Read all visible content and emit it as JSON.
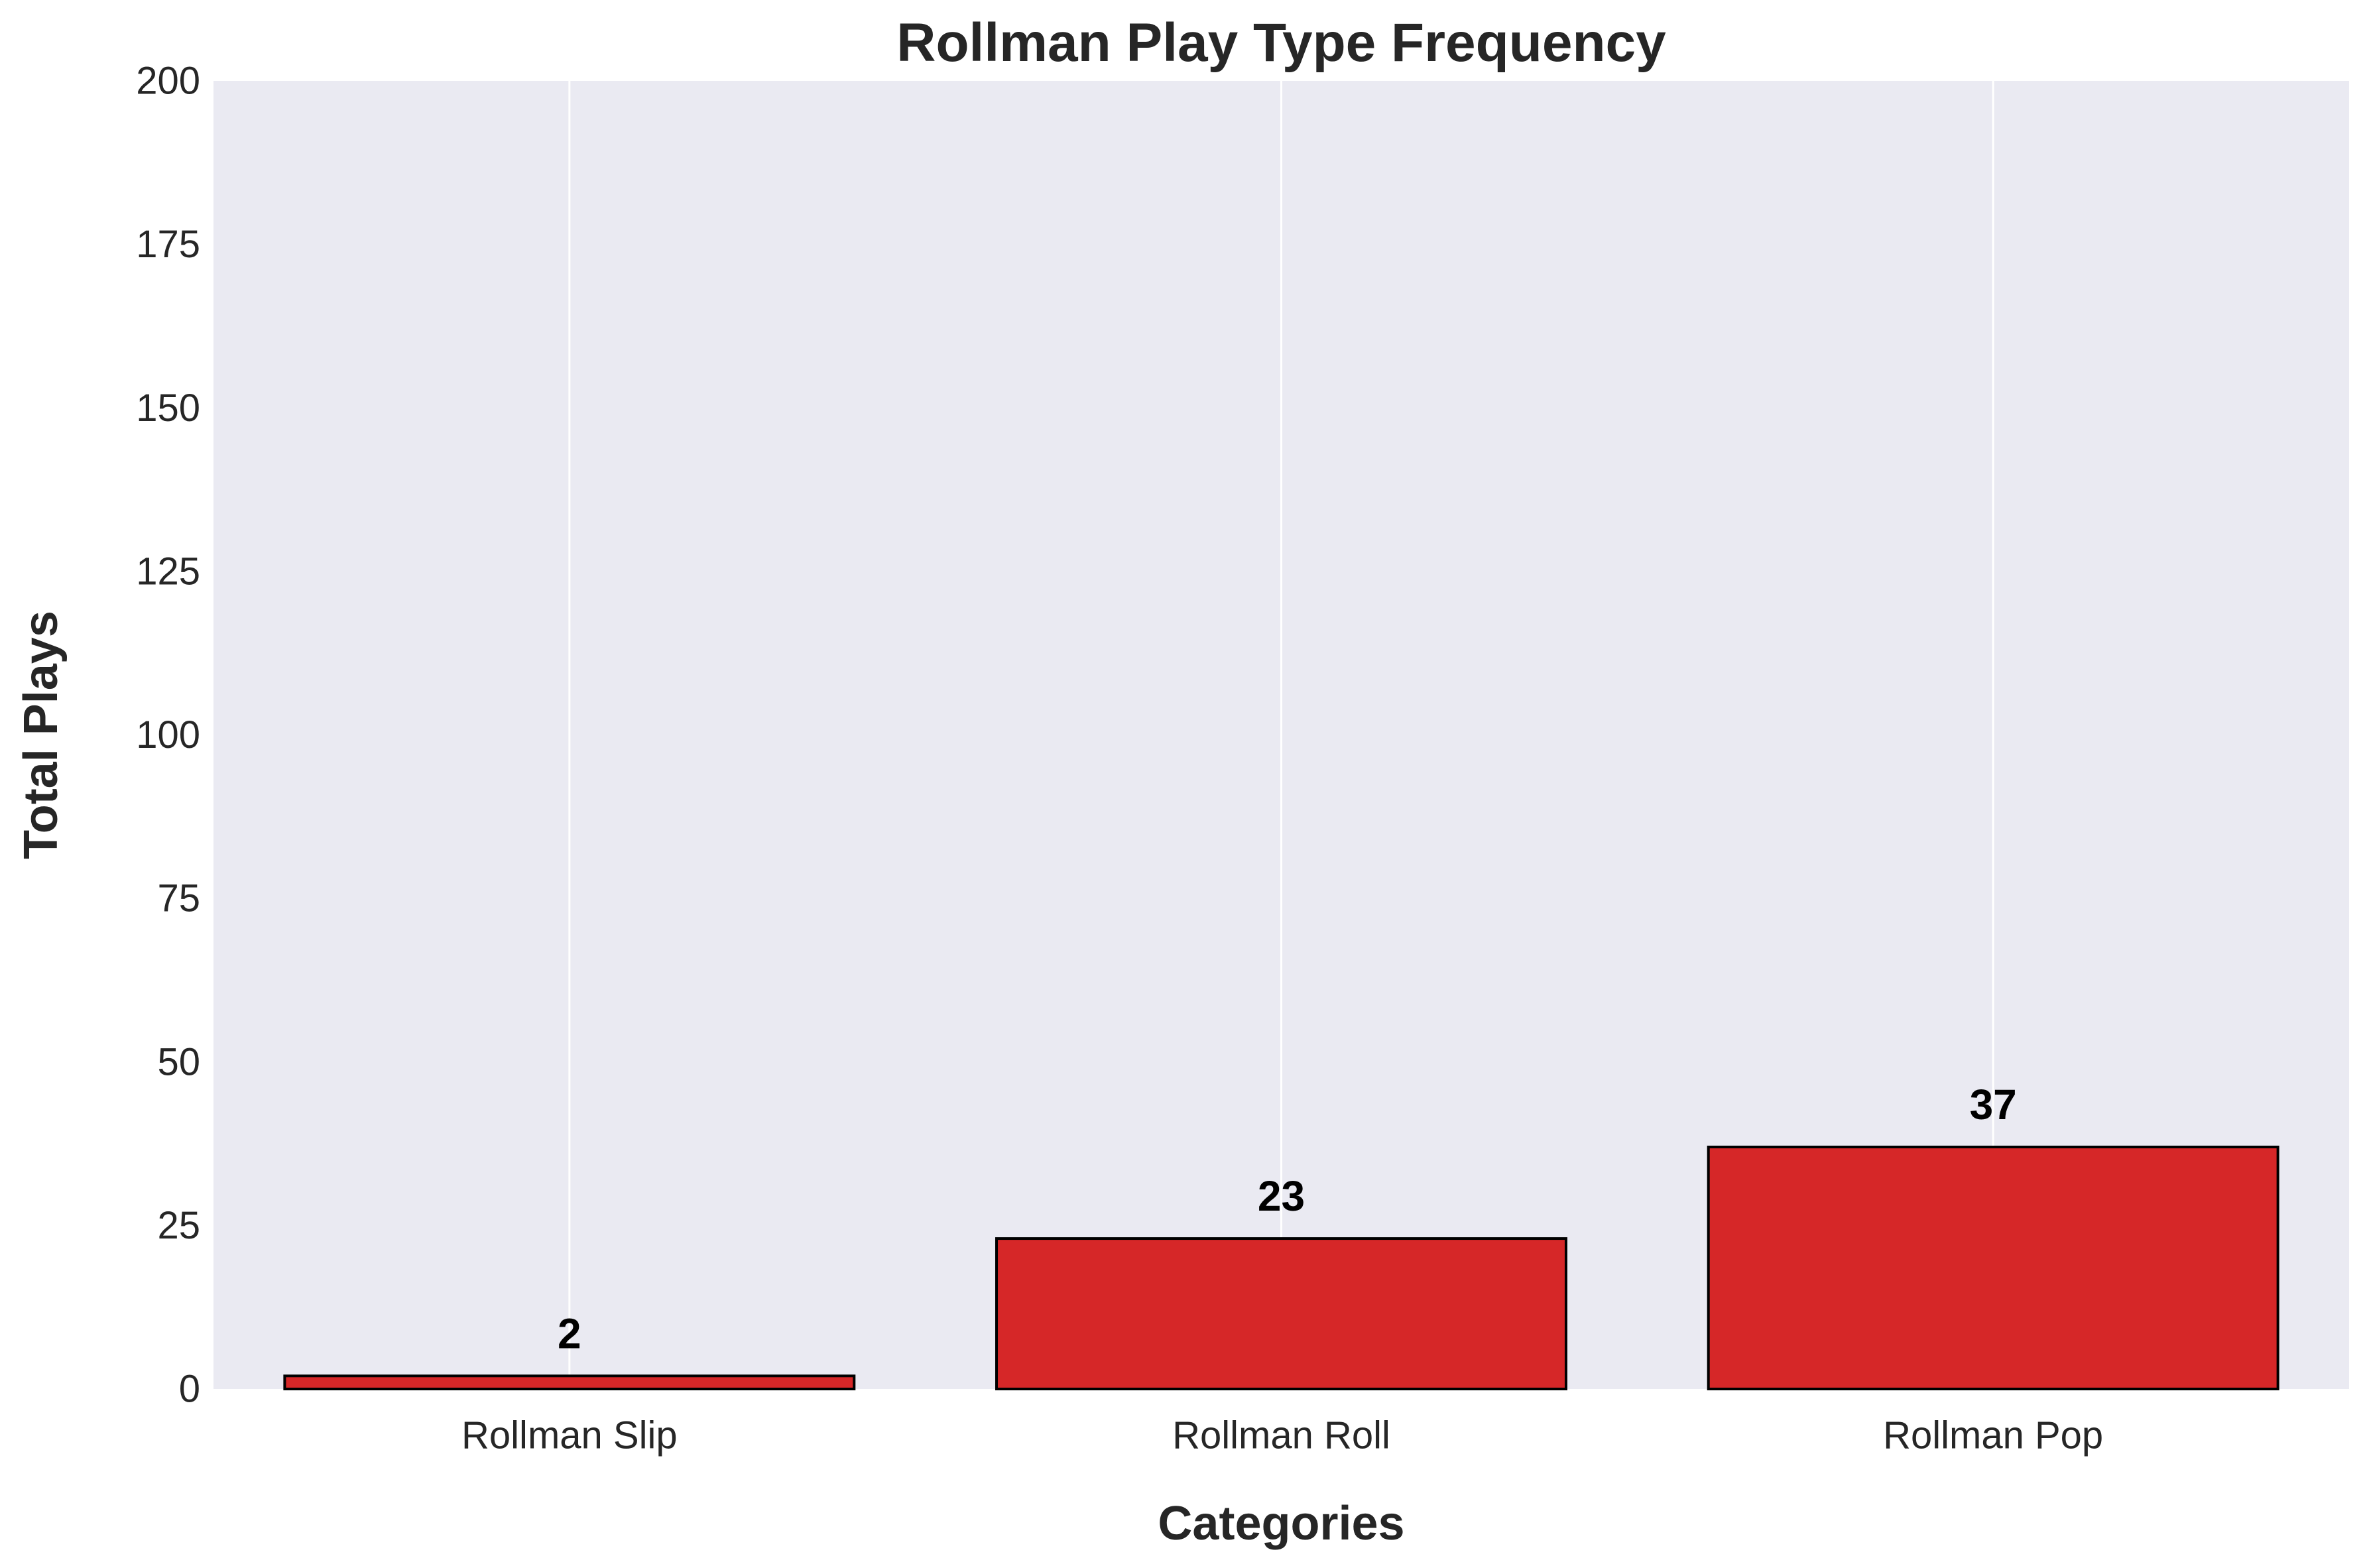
{
  "chart_data": {
    "type": "bar",
    "title": "Rollman Play Type Frequency",
    "xlabel": "Categories",
    "ylabel": "Total Plays",
    "categories": [
      "Rollman Slip",
      "Rollman Roll",
      "Rollman Pop"
    ],
    "values": [
      2,
      23,
      37
    ],
    "data_labels": [
      "2",
      "23",
      "37"
    ],
    "ylim": [
      0,
      200
    ],
    "yticks": [
      0,
      25,
      50,
      75,
      100,
      125,
      150,
      175,
      200
    ],
    "ytick_labels": [
      "0",
      "25",
      "50",
      "75",
      "100",
      "125",
      "150",
      "175",
      "200"
    ],
    "grid": true,
    "legend": "none",
    "colors": {
      "bar_fill": "#d62728",
      "bar_edge": "#000000",
      "plot_background": "#eaeaf2",
      "grid": "#ffffff"
    }
  }
}
